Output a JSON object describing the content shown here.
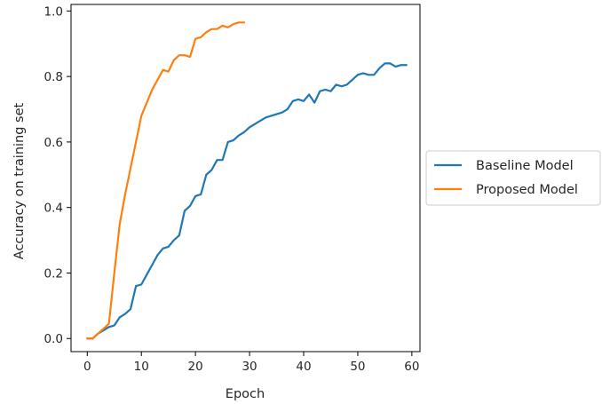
{
  "chart_data": {
    "type": "line",
    "xlabel": "Epoch",
    "ylabel": "Accuracy on training set",
    "xlim": [
      -3,
      61.5
    ],
    "ylim": [
      -0.04,
      1.02
    ],
    "xticks": [
      0,
      10,
      20,
      30,
      40,
      50,
      60
    ],
    "yticks": [
      0.0,
      0.2,
      0.4,
      0.6,
      0.8,
      1.0
    ],
    "xtick_labels": [
      "0",
      "10",
      "20",
      "30",
      "40",
      "50",
      "60"
    ],
    "ytick_labels": [
      "0.0",
      "0.2",
      "0.4",
      "0.6",
      "0.8",
      "1.0"
    ],
    "grid": false,
    "legend_position": "outside-right",
    "series": [
      {
        "name": "Baseline Model",
        "color": "#1f77b4",
        "x": [
          0,
          1,
          2,
          3,
          4,
          5,
          6,
          7,
          8,
          9,
          10,
          11,
          12,
          13,
          14,
          15,
          16,
          17,
          18,
          19,
          20,
          21,
          22,
          23,
          24,
          25,
          26,
          27,
          28,
          29,
          30,
          31,
          32,
          33,
          34,
          35,
          36,
          37,
          38,
          39,
          40,
          41,
          42,
          43,
          44,
          45,
          46,
          47,
          48,
          49,
          50,
          51,
          52,
          53,
          54,
          55,
          56,
          57,
          58,
          59
        ],
        "values": [
          0.0,
          0.0,
          0.015,
          0.025,
          0.035,
          0.04,
          0.065,
          0.075,
          0.09,
          0.16,
          0.165,
          0.195,
          0.225,
          0.255,
          0.275,
          0.28,
          0.3,
          0.315,
          0.39,
          0.405,
          0.435,
          0.44,
          0.5,
          0.515,
          0.545,
          0.545,
          0.6,
          0.605,
          0.62,
          0.63,
          0.645,
          0.655,
          0.665,
          0.675,
          0.68,
          0.685,
          0.69,
          0.7,
          0.725,
          0.73,
          0.725,
          0.745,
          0.72,
          0.755,
          0.76,
          0.755,
          0.775,
          0.77,
          0.775,
          0.79,
          0.805,
          0.81,
          0.805,
          0.805,
          0.825,
          0.84,
          0.84,
          0.83,
          0.835,
          0.835
        ]
      },
      {
        "name": "Proposed Model",
        "color": "#ff7f0e",
        "x": [
          0,
          1,
          2,
          3,
          4,
          5,
          6,
          7,
          8,
          9,
          10,
          11,
          12,
          13,
          14,
          15,
          16,
          17,
          18,
          19,
          20,
          21,
          22,
          23,
          24,
          25,
          26,
          27,
          28,
          29
        ],
        "values": [
          0.0,
          0.0,
          0.015,
          0.03,
          0.045,
          0.2,
          0.35,
          0.44,
          0.52,
          0.6,
          0.68,
          0.72,
          0.76,
          0.79,
          0.82,
          0.815,
          0.85,
          0.865,
          0.865,
          0.86,
          0.915,
          0.92,
          0.935,
          0.945,
          0.945,
          0.955,
          0.95,
          0.96,
          0.965,
          0.965
        ]
      }
    ]
  }
}
